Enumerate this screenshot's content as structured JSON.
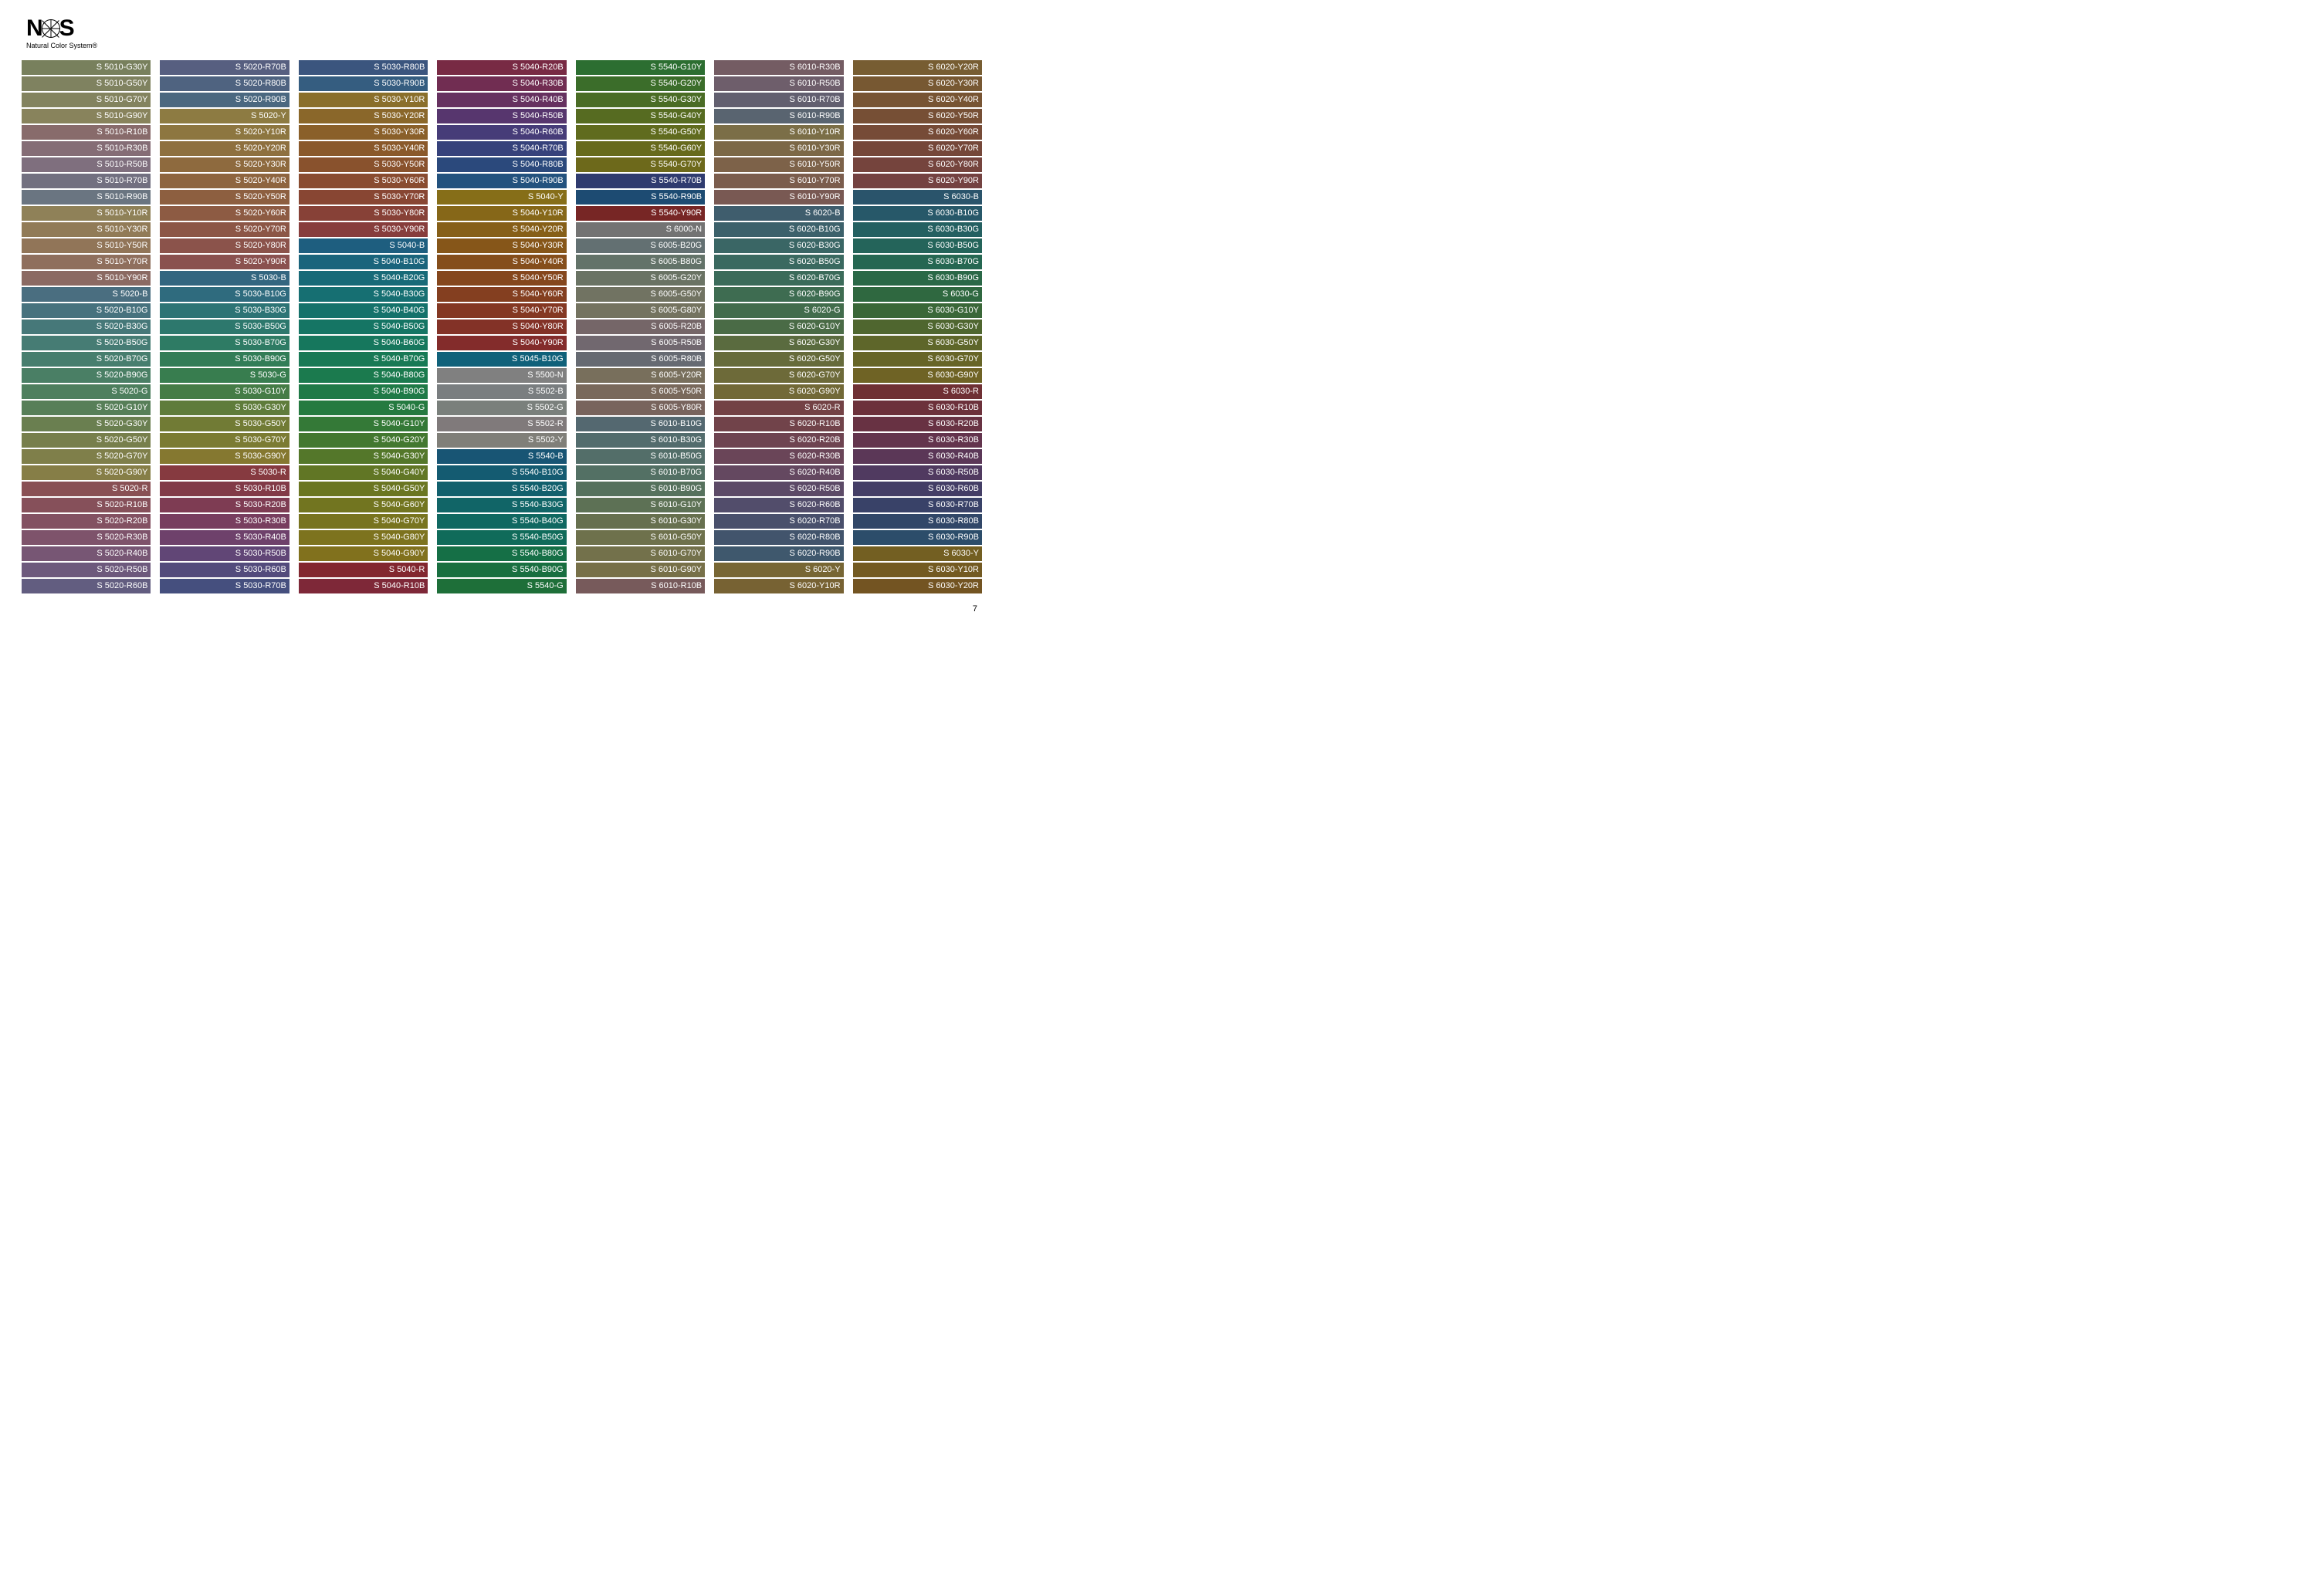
{
  "logo": {
    "line1a": "N",
    "line1b": "S",
    "line2": "Natural Color System®"
  },
  "page_number": "7",
  "columns": [
    [
      {
        "label": "S 5010-G30Y",
        "color": "#78805d"
      },
      {
        "label": "S 5010-G50Y",
        "color": "#7f8260"
      },
      {
        "label": "S 5010-G70Y",
        "color": "#83835f"
      },
      {
        "label": "S 5010-G90Y",
        "color": "#88835c"
      },
      {
        "label": "S 5010-R10B",
        "color": "#886b6b"
      },
      {
        "label": "S 5010-R30B",
        "color": "#856d76"
      },
      {
        "label": "S 5010-R50B",
        "color": "#7f6f7e"
      },
      {
        "label": "S 5010-R70B",
        "color": "#727080"
      },
      {
        "label": "S 5010-R90B",
        "color": "#6a7581"
      },
      {
        "label": "S 5010-Y10R",
        "color": "#8f8158"
      },
      {
        "label": "S 5010-Y30R",
        "color": "#917b57"
      },
      {
        "label": "S 5010-Y50R",
        "color": "#917558"
      },
      {
        "label": "S 5010-Y70R",
        "color": "#8f6f5d"
      },
      {
        "label": "S 5010-Y90R",
        "color": "#8b6a63"
      },
      {
        "label": "S 5020-B",
        "color": "#4a6e80"
      },
      {
        "label": "S 5020-B10G",
        "color": "#47727e"
      },
      {
        "label": "S 5020-B30G",
        "color": "#467879"
      },
      {
        "label": "S 5020-B50G",
        "color": "#467c74"
      },
      {
        "label": "S 5020-B70G",
        "color": "#477e6e"
      },
      {
        "label": "S 5020-B90G",
        "color": "#4a7f65"
      },
      {
        "label": "S 5020-G",
        "color": "#4e7f5e"
      },
      {
        "label": "S 5020-G10Y",
        "color": "#577f58"
      },
      {
        "label": "S 5020-G30Y",
        "color": "#6a7f50"
      },
      {
        "label": "S 5020-G50Y",
        "color": "#777f4c"
      },
      {
        "label": "S 5020-G70Y",
        "color": "#7f7f4a"
      },
      {
        "label": "S 5020-G90Y",
        "color": "#867e47"
      },
      {
        "label": "S 5020-R",
        "color": "#895054"
      },
      {
        "label": "S 5020-R10B",
        "color": "#86505a"
      },
      {
        "label": "S 5020-R20B",
        "color": "#835162"
      },
      {
        "label": "S 5020-R30B",
        "color": "#7e536b"
      },
      {
        "label": "S 5020-R40B",
        "color": "#775674"
      },
      {
        "label": "S 5020-R50B",
        "color": "#6d597c"
      },
      {
        "label": "S 5020-R60B",
        "color": "#625d80"
      }
    ],
    [
      {
        "label": "S 5020-R70B",
        "color": "#575f80"
      },
      {
        "label": "S 5020-R80B",
        "color": "#4f6380"
      },
      {
        "label": "S 5020-R90B",
        "color": "#4b6880"
      },
      {
        "label": "S 5020-Y",
        "color": "#8d7b42"
      },
      {
        "label": "S 5020-Y10R",
        "color": "#8d7640"
      },
      {
        "label": "S 5020-Y20R",
        "color": "#8e703f"
      },
      {
        "label": "S 5020-Y30R",
        "color": "#8e6a3e"
      },
      {
        "label": "S 5020-Y40R",
        "color": "#8e653f"
      },
      {
        "label": "S 5020-Y50R",
        "color": "#8d5f40"
      },
      {
        "label": "S 5020-Y60R",
        "color": "#8d5b43"
      },
      {
        "label": "S 5020-Y70R",
        "color": "#8c5646"
      },
      {
        "label": "S 5020-Y80R",
        "color": "#8b534b"
      },
      {
        "label": "S 5020-Y90R",
        "color": "#8a514f"
      },
      {
        "label": "S 5030-B",
        "color": "#336680"
      },
      {
        "label": "S 5030-B10G",
        "color": "#2f6b7e"
      },
      {
        "label": "S 5030-B30G",
        "color": "#2d7475"
      },
      {
        "label": "S 5030-B50G",
        "color": "#2d786d"
      },
      {
        "label": "S 5030-B70G",
        "color": "#2e7b64"
      },
      {
        "label": "S 5030-B90G",
        "color": "#327d57"
      },
      {
        "label": "S 5030-G",
        "color": "#387d4f"
      },
      {
        "label": "S 5030-G10Y",
        "color": "#457c46"
      },
      {
        "label": "S 5030-G30Y",
        "color": "#5f7c3b"
      },
      {
        "label": "S 5030-G50Y",
        "color": "#717b35"
      },
      {
        "label": "S 5030-G70Y",
        "color": "#7b7b33"
      },
      {
        "label": "S 5030-G90Y",
        "color": "#857830"
      },
      {
        "label": "S 5030-R",
        "color": "#863a40"
      },
      {
        "label": "S 5030-R10B",
        "color": "#823b48"
      },
      {
        "label": "S 5030-R20B",
        "color": "#7e3c53"
      },
      {
        "label": "S 5030-R30B",
        "color": "#783e5f"
      },
      {
        "label": "S 5030-R40B",
        "color": "#6e416b"
      },
      {
        "label": "S 5030-R50B",
        "color": "#614676"
      },
      {
        "label": "S 5030-R60B",
        "color": "#534b7c"
      },
      {
        "label": "S 5030-R70B",
        "color": "#454f7e"
      }
    ],
    [
      {
        "label": "S 5030-R80B",
        "color": "#3b557e"
      },
      {
        "label": "S 5030-R90B",
        "color": "#355d80"
      },
      {
        "label": "S 5030-Y10R",
        "color": "#8a6f2b"
      },
      {
        "label": "S 5030-Y20R",
        "color": "#8a672a"
      },
      {
        "label": "S 5030-Y30R",
        "color": "#8a602a"
      },
      {
        "label": "S 5030-Y40R",
        "color": "#8a592b"
      },
      {
        "label": "S 5030-Y50R",
        "color": "#89522d"
      },
      {
        "label": "S 5030-Y60R",
        "color": "#894c30"
      },
      {
        "label": "S 5030-Y70R",
        "color": "#884633"
      },
      {
        "label": "S 5030-Y80R",
        "color": "#874137"
      },
      {
        "label": "S 5030-Y90R",
        "color": "#873d3c"
      },
      {
        "label": "S 5040-B",
        "color": "#1e5e7f"
      },
      {
        "label": "S 5040-B10G",
        "color": "#1a647c"
      },
      {
        "label": "S 5040-B20G",
        "color": "#186a78"
      },
      {
        "label": "S 5040-B30G",
        "color": "#166f72"
      },
      {
        "label": "S 5040-B40G",
        "color": "#15726b"
      },
      {
        "label": "S 5040-B50G",
        "color": "#157564"
      },
      {
        "label": "S 5040-B60G",
        "color": "#16775d"
      },
      {
        "label": "S 5040-B70G",
        "color": "#187955"
      },
      {
        "label": "S 5040-B80G",
        "color": "#1b7a4e"
      },
      {
        "label": "S 5040-B90G",
        "color": "#1f7a47"
      },
      {
        "label": "S 5040-G",
        "color": "#257a40"
      },
      {
        "label": "S 5040-G10Y",
        "color": "#347937"
      },
      {
        "label": "S 5040-G20Y",
        "color": "#437830"
      },
      {
        "label": "S 5040-G30Y",
        "color": "#54772a"
      },
      {
        "label": "S 5040-G40Y",
        "color": "#617625"
      },
      {
        "label": "S 5040-G50Y",
        "color": "#6b7622"
      },
      {
        "label": "S 5040-G60Y",
        "color": "#727520"
      },
      {
        "label": "S 5040-G70Y",
        "color": "#78741f"
      },
      {
        "label": "S 5040-G80Y",
        "color": "#7d731e"
      },
      {
        "label": "S 5040-G90Y",
        "color": "#81711d"
      },
      {
        "label": "S 5040-R",
        "color": "#82272f"
      },
      {
        "label": "S 5040-R10B",
        "color": "#7e2838"
      }
    ],
    [
      {
        "label": "S 5040-R20B",
        "color": "#782a44"
      },
      {
        "label": "S 5040-R30B",
        "color": "#712d52"
      },
      {
        "label": "S 5040-R40B",
        "color": "#663160"
      },
      {
        "label": "S 5040-R50B",
        "color": "#57366e"
      },
      {
        "label": "S 5040-R60B",
        "color": "#463c78"
      },
      {
        "label": "S 5040-R70B",
        "color": "#36427b"
      },
      {
        "label": "S 5040-R80B",
        "color": "#2b497c"
      },
      {
        "label": "S 5040-R90B",
        "color": "#23527e"
      },
      {
        "label": "S 5040-Y",
        "color": "#866e18"
      },
      {
        "label": "S 5040-Y10R",
        "color": "#866718"
      },
      {
        "label": "S 5040-Y20R",
        "color": "#865f18"
      },
      {
        "label": "S 5040-Y30R",
        "color": "#865619"
      },
      {
        "label": "S 5040-Y40R",
        "color": "#854e1b"
      },
      {
        "label": "S 5040-Y50R",
        "color": "#85471d"
      },
      {
        "label": "S 5040-Y60R",
        "color": "#843f20"
      },
      {
        "label": "S 5040-Y70R",
        "color": "#843823"
      },
      {
        "label": "S 5040-Y80R",
        "color": "#833227"
      },
      {
        "label": "S 5040-Y90R",
        "color": "#832c2b"
      },
      {
        "label": "S 5045-B10G",
        "color": "#10617a"
      },
      {
        "label": "S 5500-N",
        "color": "#808080"
      },
      {
        "label": "S 5502-B",
        "color": "#7a7e80"
      },
      {
        "label": "S 5502-G",
        "color": "#7a807c"
      },
      {
        "label": "S 5502-R",
        "color": "#807a7b"
      },
      {
        "label": "S 5502-Y",
        "color": "#807f79"
      },
      {
        "label": "S 5540-B",
        "color": "#185574"
      },
      {
        "label": "S 5540-B10G",
        "color": "#145b71"
      },
      {
        "label": "S 5540-B20G",
        "color": "#12606d"
      },
      {
        "label": "S 5540-B30G",
        "color": "#116567"
      },
      {
        "label": "S 5540-B40G",
        "color": "#106861"
      },
      {
        "label": "S 5540-B50G",
        "color": "#106b5a"
      },
      {
        "label": "S 5540-B80G",
        "color": "#156f46"
      },
      {
        "label": "S 5540-B90G",
        "color": "#196f40"
      },
      {
        "label": "S 5540-G",
        "color": "#1e6f39"
      }
    ],
    [
      {
        "label": "S 5540-G10Y",
        "color": "#2c6e31"
      },
      {
        "label": "S 5540-G20Y",
        "color": "#3b6d2a"
      },
      {
        "label": "S 5540-G30Y",
        "color": "#4a6c25"
      },
      {
        "label": "S 5540-G40Y",
        "color": "#566b21"
      },
      {
        "label": "S 5540-G50Y",
        "color": "#606b1e"
      },
      {
        "label": "S 5540-G60Y",
        "color": "#676a1c"
      },
      {
        "label": "S 5540-G70Y",
        "color": "#6d691b"
      },
      {
        "label": "S 5540-R70B",
        "color": "#2f3b6f"
      },
      {
        "label": "S 5540-R90B",
        "color": "#1d4b72"
      },
      {
        "label": "S 5540-Y90R",
        "color": "#772625"
      },
      {
        "label": "S 6000-N",
        "color": "#737373"
      },
      {
        "label": "S 6005-B20G",
        "color": "#637072"
      },
      {
        "label": "S 6005-B80G",
        "color": "#637369"
      },
      {
        "label": "S 6005-G20Y",
        "color": "#6a7364"
      },
      {
        "label": "S 6005-G50Y",
        "color": "#717362"
      },
      {
        "label": "S 6005-G80Y",
        "color": "#747360"
      },
      {
        "label": "S 6005-R20B",
        "color": "#756668"
      },
      {
        "label": "S 6005-R50B",
        "color": "#71686f"
      },
      {
        "label": "S 6005-R80B",
        "color": "#666a72"
      },
      {
        "label": "S 6005-Y20R",
        "color": "#786f5c"
      },
      {
        "label": "S 6005-Y50R",
        "color": "#79695b"
      },
      {
        "label": "S 6005-Y80R",
        "color": "#78645d"
      },
      {
        "label": "S 6010-B10G",
        "color": "#546870"
      },
      {
        "label": "S 6010-B30G",
        "color": "#536c6d"
      },
      {
        "label": "S 6010-B50G",
        "color": "#536e69"
      },
      {
        "label": "S 6010-B70G",
        "color": "#537064"
      },
      {
        "label": "S 6010-B90G",
        "color": "#56715d"
      },
      {
        "label": "S 6010-G10Y",
        "color": "#5d7155"
      },
      {
        "label": "S 6010-G30Y",
        "color": "#67704f"
      },
      {
        "label": "S 6010-G50Y",
        "color": "#6e714c"
      },
      {
        "label": "S 6010-G70Y",
        "color": "#73714b"
      },
      {
        "label": "S 6010-G90Y",
        "color": "#777048"
      },
      {
        "label": "S 6010-R10B",
        "color": "#775a5b"
      }
    ],
    [
      {
        "label": "S 6010-R30B",
        "color": "#745c63"
      },
      {
        "label": "S 6010-R50B",
        "color": "#6e5e6b"
      },
      {
        "label": "S 6010-R70B",
        "color": "#625f6f"
      },
      {
        "label": "S 6010-R90B",
        "color": "#596470"
      },
      {
        "label": "S 6010-Y10R",
        "color": "#7b6e47"
      },
      {
        "label": "S 6010-Y30R",
        "color": "#7c6847"
      },
      {
        "label": "S 6010-Y50R",
        "color": "#7d6249"
      },
      {
        "label": "S 6010-Y70R",
        "color": "#7b5d4d"
      },
      {
        "label": "S 6010-Y90R",
        "color": "#795953"
      },
      {
        "label": "S 6020-B",
        "color": "#3f5d6d"
      },
      {
        "label": "S 6020-B10G",
        "color": "#3c616b"
      },
      {
        "label": "S 6020-B30G",
        "color": "#3a6665"
      },
      {
        "label": "S 6020-B50G",
        "color": "#3a6960"
      },
      {
        "label": "S 6020-B70G",
        "color": "#3b6b5a"
      },
      {
        "label": "S 6020-B90G",
        "color": "#3e6c51"
      },
      {
        "label": "S 6020-G",
        "color": "#426c4c"
      },
      {
        "label": "S 6020-G10Y",
        "color": "#4a6b46"
      },
      {
        "label": "S 6020-G30Y",
        "color": "#5a6b3f"
      },
      {
        "label": "S 6020-G50Y",
        "color": "#666b3b"
      },
      {
        "label": "S 6020-G70Y",
        "color": "#6d6a39"
      },
      {
        "label": "S 6020-G90Y",
        "color": "#726937"
      },
      {
        "label": "S 6020-R",
        "color": "#734245"
      },
      {
        "label": "S 6020-R10B",
        "color": "#71434a"
      },
      {
        "label": "S 6020-R20B",
        "color": "#6e4451"
      },
      {
        "label": "S 6020-R30B",
        "color": "#6a4558"
      },
      {
        "label": "S 6020-R40B",
        "color": "#644860"
      },
      {
        "label": "S 6020-R50B",
        "color": "#5c4a67"
      },
      {
        "label": "S 6020-R60B",
        "color": "#524d6b"
      },
      {
        "label": "S 6020-R70B",
        "color": "#49506c"
      },
      {
        "label": "S 6020-R80B",
        "color": "#42546c"
      },
      {
        "label": "S 6020-R90B",
        "color": "#3f586d"
      },
      {
        "label": "S 6020-Y",
        "color": "#776634"
      },
      {
        "label": "S 6020-Y10R",
        "color": "#776233"
      }
    ],
    [
      {
        "label": "S 6020-Y20R",
        "color": "#775d32"
      },
      {
        "label": "S 6020-Y30R",
        "color": "#775832"
      },
      {
        "label": "S 6020-Y40R",
        "color": "#775433"
      },
      {
        "label": "S 6020-Y50R",
        "color": "#764f35"
      },
      {
        "label": "S 6020-Y60R",
        "color": "#764b37"
      },
      {
        "label": "S 6020-Y70R",
        "color": "#754739"
      },
      {
        "label": "S 6020-Y80R",
        "color": "#75443d"
      },
      {
        "label": "S 6020-Y90R",
        "color": "#744241"
      },
      {
        "label": "S 6030-B",
        "color": "#2a546b"
      },
      {
        "label": "S 6030-B10G",
        "color": "#275869"
      },
      {
        "label": "S 6030-B30G",
        "color": "#246061"
      },
      {
        "label": "S 6030-B50G",
        "color": "#24645a"
      },
      {
        "label": "S 6030-B70G",
        "color": "#256752"
      },
      {
        "label": "S 6030-B90G",
        "color": "#2a6847"
      },
      {
        "label": "S 6030-G",
        "color": "#2f6840"
      },
      {
        "label": "S 6030-G10Y",
        "color": "#3a6738"
      },
      {
        "label": "S 6030-G30Y",
        "color": "#4f662f"
      },
      {
        "label": "S 6030-G50Y",
        "color": "#5e662a"
      },
      {
        "label": "S 6030-G70Y",
        "color": "#676527"
      },
      {
        "label": "S 6030-G90Y",
        "color": "#6f6325"
      },
      {
        "label": "S 6030-R",
        "color": "#6f3034"
      },
      {
        "label": "S 6030-R10B",
        "color": "#6c313b"
      },
      {
        "label": "S 6030-R20B",
        "color": "#683243"
      },
      {
        "label": "S 6030-R30B",
        "color": "#63344d"
      },
      {
        "label": "S 6030-R40B",
        "color": "#5b3757"
      },
      {
        "label": "S 6030-R50B",
        "color": "#503a60"
      },
      {
        "label": "S 6030-R60B",
        "color": "#443e66"
      },
      {
        "label": "S 6030-R70B",
        "color": "#394268"
      },
      {
        "label": "S 6030-R80B",
        "color": "#314768"
      },
      {
        "label": "S 6030-R90B",
        "color": "#2c4d6a"
      },
      {
        "label": "S 6030-Y",
        "color": "#735f22"
      },
      {
        "label": "S 6030-Y10R",
        "color": "#735a22"
      },
      {
        "label": "S 6030-Y20R",
        "color": "#735422"
      }
    ]
  ]
}
